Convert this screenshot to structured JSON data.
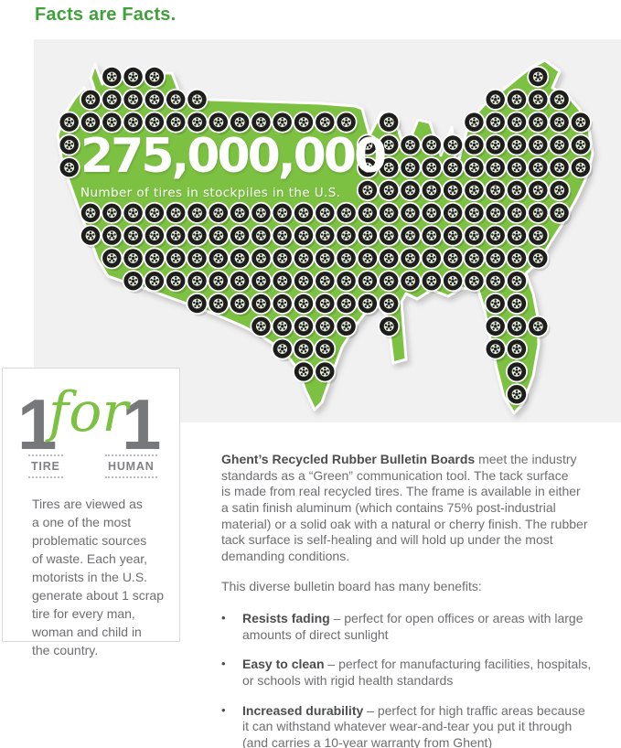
{
  "page": {
    "title": "Facts are Facts."
  },
  "map": {
    "stat_number": "275,000,000",
    "stat_caption": "Number of tires in stockpiles in the U.S.",
    "colors": {
      "map_green": "#7cc142",
      "panel_gray": "#f1f1f2",
      "tire_black": "#1d1d1b",
      "rim_white": "#e8efe0",
      "halo_white": "#ffffff"
    }
  },
  "card": {
    "left_number": "1",
    "middle_word": "for",
    "right_number": "1",
    "left_label": "TIRE",
    "right_label": "HUMAN",
    "body": "Tires are viewed as\na one of the most\nproblematic sources\nof waste. Each year,\nmotorists in the U.S.\ngenerate about 1 scrap\ntire for every man,\nwoman and child in\nthe country."
  },
  "content": {
    "intro_bold": "Ghent’s Recycled Rubber Bulletin Boards",
    "intro_rest": " meet the industry\nstandards as a “Green” communication tool. The tack surface\nis made from real recycled tires. The frame is available in either\na satin finish aluminum (which contains 75% post-industrial\nmaterial) or a solid oak with a natural or cherry finish. The rubber\ntack surface is self-healing and will hold up under the most\ndemanding conditions.",
    "benefits_intro": "This diverse bulletin board has many benefits:",
    "bullet_glyph": "•",
    "benefits": [
      {
        "bold": "Resists fading",
        "rest": " – perfect for open offices or areas with large\namounts of direct sunlight"
      },
      {
        "bold": "Easy to clean",
        "rest": " – perfect for manufacturing facilities, hospitals,\nor schools with rigid health standards"
      },
      {
        "bold": "Increased durability",
        "rest": " – perfect for high traffic areas because\nit can withstand whatever wear-and-tear you put it through\n(and carries a 10-year warranty from Ghent)"
      }
    ]
  },
  "colors": {
    "accent_green": "#3fa13a",
    "text_gray": "#6d6e71",
    "bold_gray": "#4c4d4f",
    "number_gray": "#77787b"
  }
}
